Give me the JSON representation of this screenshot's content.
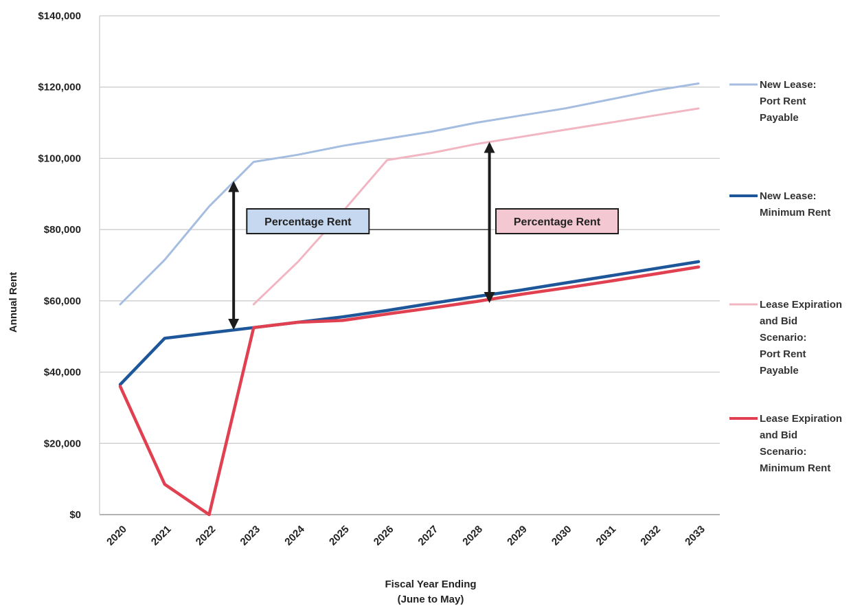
{
  "chart_data": {
    "type": "line",
    "title": "",
    "xlabel": "Fiscal Year Ending",
    "xlabel_sub": "(June to May)",
    "ylabel": "Annual Rent",
    "x": [
      2020,
      2021,
      2022,
      2023,
      2024,
      2025,
      2026,
      2027,
      2028,
      2029,
      2030,
      2031,
      2032,
      2033
    ],
    "x_tick_labels": [
      "2020",
      "2021",
      "2022",
      "2023",
      "2024",
      "2025",
      "2026",
      "2027",
      "2028",
      "2029",
      "2030",
      "2031",
      "2032",
      "2033"
    ],
    "ylim": [
      0,
      140000
    ],
    "y_ticks": [
      0,
      20000,
      40000,
      60000,
      80000,
      100000,
      120000,
      140000
    ],
    "y_tick_labels": [
      "$0",
      "$20,000",
      "$40,000",
      "$60,000",
      "$80,000",
      "$100,000",
      "$120,000",
      "$140,000"
    ],
    "grid": "horizontal",
    "legend_position": "right",
    "series": [
      {
        "name_lines": [
          "New Lease:",
          "Port Rent",
          "Payable"
        ],
        "color": "#a4bde0",
        "values": [
          59000,
          71500,
          86500,
          99000,
          101000,
          103500,
          105500,
          107500,
          110000,
          112000,
          114000,
          116500,
          119000,
          121000
        ]
      },
      {
        "name_lines": [
          "New Lease:",
          "Minimum Rent"
        ],
        "color": "#1e5799",
        "values": [
          36500,
          49500,
          51000,
          52500,
          54000,
          55500,
          57300,
          59300,
          61200,
          63000,
          65000,
          67000,
          69000,
          71000
        ]
      },
      {
        "name_lines": [
          "Lease Expiration",
          "and Bid",
          "Scenario:",
          "Port Rent",
          "Payable"
        ],
        "color": "#f2b6c3",
        "values": [
          null,
          null,
          null,
          59000,
          71000,
          85000,
          99500,
          101500,
          104000,
          106000,
          108000,
          110000,
          112000,
          114000
        ]
      },
      {
        "name_lines": [
          "Lease Expiration",
          "and Bid",
          "Scenario:",
          "Minimum Rent"
        ],
        "color": "#e0404f",
        "values": [
          36000,
          8500,
          0,
          52500,
          54000,
          54500,
          56300,
          58000,
          59800,
          61800,
          63600,
          65500,
          67500,
          69500
        ]
      }
    ],
    "annotations": [
      {
        "text": "Percentage Rent",
        "box_fill": "#c5d8ef",
        "arrow_x": 2022.55,
        "arrow_from": 93000,
        "arrow_to": 52500,
        "label_x": 2023.0,
        "label_y": 83500,
        "leader_to_x": 2028.3,
        "leader_y": 80000
      },
      {
        "text": "Percentage Rent",
        "box_fill": "#f4c8d3",
        "arrow_x": 2028.3,
        "arrow_from": 104000,
        "arrow_to": 60000,
        "label_x": 2028.6,
        "label_y": 83500
      }
    ]
  }
}
